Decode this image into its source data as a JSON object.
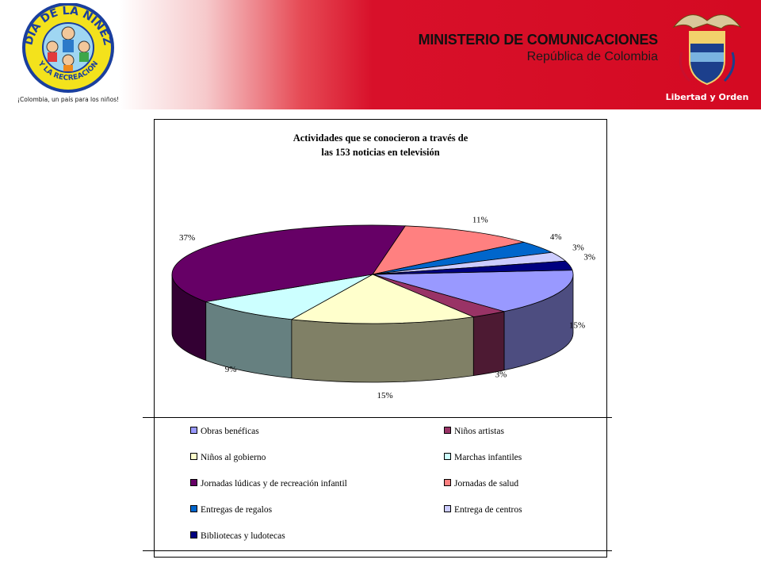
{
  "header": {
    "ministry_name": "MINISTERIO DE COMUNICACIONES",
    "country": "República de Colombia",
    "logo_left": {
      "icon": "dia-de-la-ninez-logo",
      "top_text": "DIA DE LA NIÑEZ",
      "bottom_text": "Y LA RECREACION",
      "tagline": "¡Colombia, un país para los niños!"
    },
    "logo_right": {
      "icon": "colombia-coat-of-arms-icon",
      "motto": "Libertad y Orden"
    }
  },
  "chart_data": {
    "type": "pie",
    "title": "Actividades que se conocieron a través de las 153 noticias en televisión",
    "title_lines": [
      "Actividades que se conocieron a través de",
      "las 153 noticias en televisión"
    ],
    "legend_placement": "bottom",
    "slices": [
      {
        "name": "Obras benéficas",
        "value": 15,
        "label": "15%",
        "color": "#9999ff"
      },
      {
        "name": "Niños artistas",
        "value": 3,
        "label": "3%",
        "color": "#993366"
      },
      {
        "name": "Niños al gobierno",
        "value": 15,
        "label": "15%",
        "color": "#ffffcc"
      },
      {
        "name": "Marchas infantiles",
        "value": 9,
        "label": "9%",
        "color": "#ccffff"
      },
      {
        "name": "Jornadas lúdicas y de recreación infantil",
        "value": 37,
        "label": "37%",
        "color": "#660066"
      },
      {
        "name": "Jornadas de salud",
        "value": 11,
        "label": "11%",
        "color": "#ff8080"
      },
      {
        "name": "Entregas de regalos",
        "value": 4,
        "label": "4%",
        "color": "#0066cc"
      },
      {
        "name": "Entrega de centros",
        "value": 3,
        "label": "3%",
        "color": "#ccccff"
      },
      {
        "name": "Bibliotecas y ludotecas",
        "value": 3,
        "label": "3%",
        "color": "#000080"
      }
    ]
  }
}
